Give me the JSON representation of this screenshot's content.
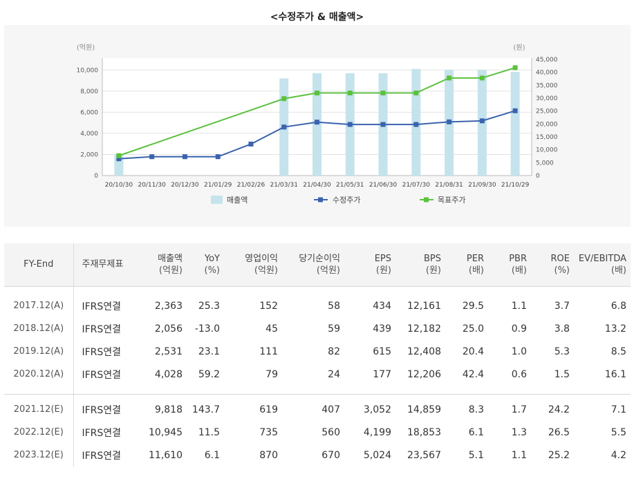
{
  "chart_data": {
    "type": "bar+line",
    "title": "<수정주가 & 매출액>",
    "left_axis_unit": "(억원)",
    "right_axis_unit": "(원)",
    "left_ylim": [
      0,
      11000
    ],
    "left_ticks": [
      "0",
      "2,000",
      "4,000",
      "6,000",
      "8,000",
      "10,000"
    ],
    "right_ylim": [
      0,
      45000
    ],
    "right_ticks": [
      "0",
      "5,000",
      "10,000",
      "15,000",
      "20,000",
      "25,000",
      "30,000",
      "35,000",
      "40,000",
      "45,000"
    ],
    "categories": [
      "20/10/30",
      "20/11/30",
      "20/12/30",
      "21/01/29",
      "21/02/26",
      "21/03/31",
      "21/04/30",
      "21/05/31",
      "21/06/30",
      "21/07/30",
      "21/08/31",
      "21/09/30",
      "21/10/29"
    ],
    "series": [
      {
        "name": "매출액",
        "type": "bar",
        "axis": "left",
        "color": "#c5e3ec",
        "values": [
          2000,
          null,
          null,
          null,
          null,
          9200,
          9700,
          9700,
          9700,
          10100,
          10000,
          10000,
          9818
        ]
      },
      {
        "name": "수정주가",
        "type": "line",
        "axis": "right",
        "color": "#3a62ad",
        "values": [
          6500,
          7300,
          7300,
          7300,
          12200,
          18800,
          20700,
          19800,
          19800,
          19800,
          20800,
          21200,
          25100
        ]
      },
      {
        "name": "목표주가",
        "type": "line",
        "axis": "right",
        "color": "#5cc13f",
        "values": [
          7700,
          null,
          null,
          null,
          null,
          29800,
          32000,
          32000,
          32000,
          32000,
          37800,
          37800,
          41800
        ]
      }
    ]
  },
  "table": {
    "headers": [
      {
        "label": "FY-End",
        "unit": ""
      },
      {
        "label": "주재무제표",
        "unit": ""
      },
      {
        "label": "매출액",
        "unit": "(억원)"
      },
      {
        "label": "YoY",
        "unit": "(%)"
      },
      {
        "label": "영업이익",
        "unit": "(억원)"
      },
      {
        "label": "당기순이익",
        "unit": "(억원)"
      },
      {
        "label": "EPS",
        "unit": "(원)"
      },
      {
        "label": "BPS",
        "unit": "(원)"
      },
      {
        "label": "PER",
        "unit": "(배)"
      },
      {
        "label": "PBR",
        "unit": "(배)"
      },
      {
        "label": "ROE",
        "unit": "(%)"
      },
      {
        "label": "EV/EBITDA",
        "unit": "(배)"
      }
    ],
    "actual_rows": [
      [
        "2017.12(A)",
        "IFRS연결",
        "2,363",
        "25.3",
        "152",
        "58",
        "434",
        "12,161",
        "29.5",
        "1.1",
        "3.7",
        "6.8"
      ],
      [
        "2018.12(A)",
        "IFRS연결",
        "2,056",
        "-13.0",
        "45",
        "59",
        "439",
        "12,182",
        "25.0",
        "0.9",
        "3.8",
        "13.2"
      ],
      [
        "2019.12(A)",
        "IFRS연결",
        "2,531",
        "23.1",
        "111",
        "82",
        "615",
        "12,408",
        "20.4",
        "1.0",
        "5.3",
        "8.5"
      ],
      [
        "2020.12(A)",
        "IFRS연결",
        "4,028",
        "59.2",
        "79",
        "24",
        "177",
        "12,206",
        "42.4",
        "0.6",
        "1.5",
        "16.1"
      ]
    ],
    "estimate_rows": [
      [
        "2021.12(E)",
        "IFRS연결",
        "9,818",
        "143.7",
        "619",
        "407",
        "3,052",
        "14,859",
        "8.3",
        "1.7",
        "24.2",
        "7.1"
      ],
      [
        "2022.12(E)",
        "IFRS연결",
        "10,945",
        "11.5",
        "735",
        "560",
        "4,199",
        "18,853",
        "6.1",
        "1.3",
        "26.5",
        "5.5"
      ],
      [
        "2023.12(E)",
        "IFRS연결",
        "11,610",
        "6.1",
        "870",
        "670",
        "5,024",
        "23,567",
        "5.1",
        "1.1",
        "25.2",
        "4.2"
      ]
    ]
  }
}
